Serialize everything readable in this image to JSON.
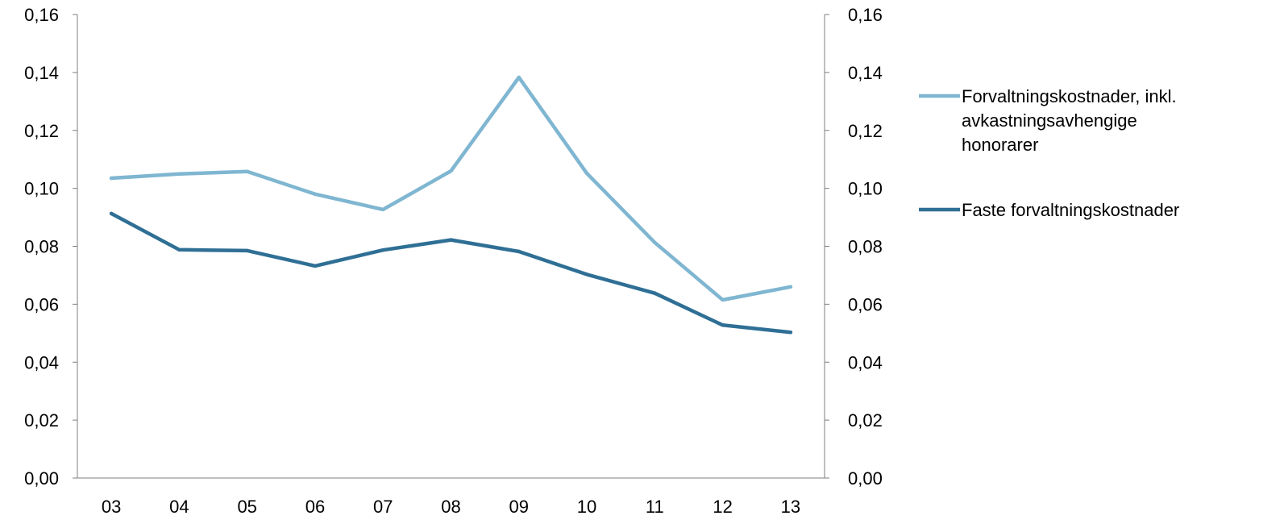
{
  "chart_data": {
    "type": "line",
    "title": "",
    "xlabel": "",
    "ylabel": "",
    "categories": [
      "03",
      "04",
      "05",
      "06",
      "07",
      "08",
      "09",
      "10",
      "11",
      "12",
      "13"
    ],
    "ylim": [
      0,
      0.16
    ],
    "yticks": [
      "0,00",
      "0,02",
      "0,04",
      "0,06",
      "0,08",
      "0,10",
      "0,12",
      "0,14",
      "0,16"
    ],
    "secondary_yticks": [
      "0,00",
      "0,02",
      "0,04",
      "0,06",
      "0,08",
      "0,10",
      "0,12",
      "0,14",
      "0,16"
    ],
    "grid": false,
    "legend_position": "right",
    "series": [
      {
        "name": "Forvaltningskostnader, inkl. avkastningsavhengige honorarer",
        "legend_lines": [
          "Forvaltningskostnader, inkl.",
          "avkastningsavhengige",
          "honorarer"
        ],
        "color": "#7fb6d1",
        "values": [
          0.1035,
          0.105,
          0.1058,
          0.098,
          0.0927,
          0.106,
          0.1383,
          0.1052,
          0.0813,
          0.0615,
          0.066
        ]
      },
      {
        "name": "Faste forvaltningskostnader",
        "legend_lines": [
          "Faste forvaltningskostnader"
        ],
        "color": "#2f6f95",
        "values": [
          0.0913,
          0.0788,
          0.0785,
          0.0732,
          0.0787,
          0.0822,
          0.0782,
          0.0703,
          0.0638,
          0.0528,
          0.0503
        ]
      }
    ]
  }
}
